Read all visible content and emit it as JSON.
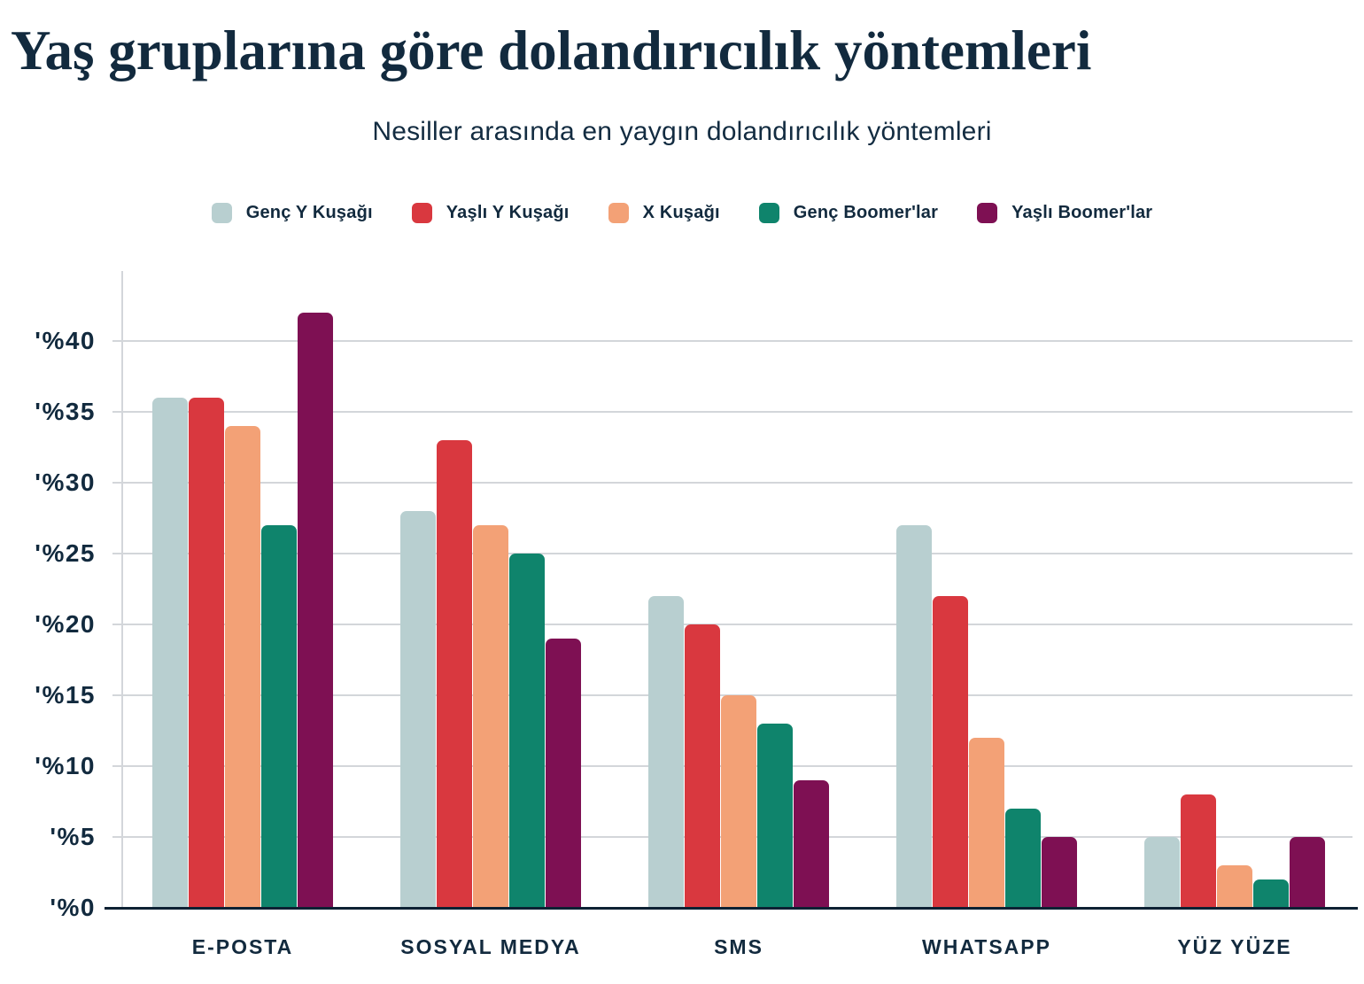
{
  "title": "Yaş gruplarına göre dolandırıcılık yöntemleri",
  "subtitle": "Nesiller arasında en yaygın dolandırıcılık yöntemleri",
  "chart_data": {
    "type": "bar",
    "title": "Yaş gruplarına göre dolandırıcılık yöntemleri",
    "subtitle": "Nesiller arasında en yaygın dolandırıcılık yöntemleri",
    "categories": [
      "E-POSTA",
      "SOSYAL MEDYA",
      "SMS",
      "WHATSAPP",
      "YÜZ YÜZE"
    ],
    "series": [
      {
        "name": "Genç Y Kuşağı",
        "color": "#b8cfd0",
        "values": [
          36,
          28,
          22,
          27,
          5
        ]
      },
      {
        "name": "Yaşlı Y Kuşağı",
        "color": "#d9383f",
        "values": [
          36,
          33,
          20,
          22,
          8
        ]
      },
      {
        "name": "X Kuşağı",
        "color": "#f3a176",
        "values": [
          34,
          27,
          15,
          12,
          3
        ]
      },
      {
        "name": "Genç Boomer'lar",
        "color": "#0f846c",
        "values": [
          27,
          25,
          13,
          7,
          2
        ]
      },
      {
        "name": "Yaşlı Boomer'lar",
        "color": "#7e1053",
        "values": [
          42,
          19,
          9,
          5,
          5
        ]
      }
    ],
    "unit": "percent",
    "y_ticks": [
      "'%0",
      "'%5",
      "'%10",
      "'%15",
      "'%20",
      "'%25",
      "'%30",
      "'%35",
      "'%40"
    ],
    "ylim": [
      0,
      45
    ],
    "grid": "horizontal",
    "legend_position": "top",
    "axis_color": "#0d2133",
    "gridline_color": "#d3d6da",
    "text_color": "#122a3e"
  }
}
